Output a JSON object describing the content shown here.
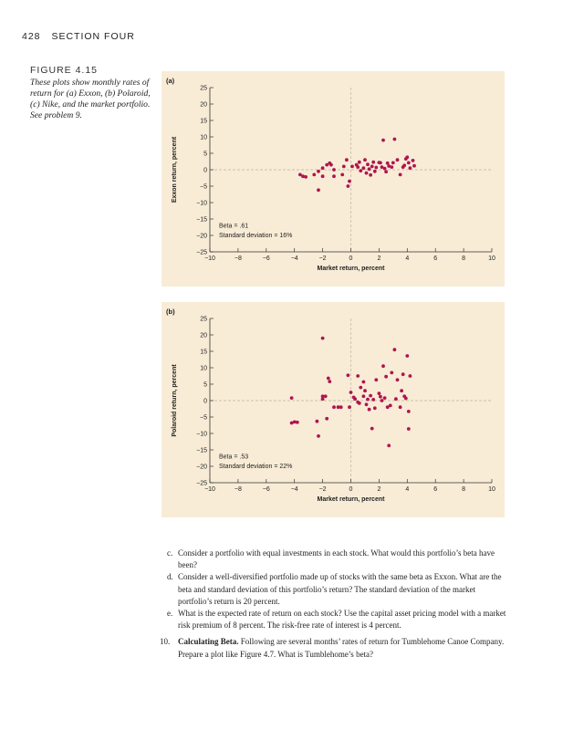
{
  "header": {
    "page_number": "428",
    "section": "SECTION FOUR"
  },
  "figure": {
    "label": "FIGURE 4.15",
    "caption": "These plots show monthly rates of return for (a) Exxon, (b) Polaroid, (c) Nike, and the market portfolio. See problem 9."
  },
  "chart_data": [
    {
      "type": "scatter",
      "panel_label": "(a)",
      "xlabel": "Market return, percent",
      "ylabel": "Exxon return, percent",
      "xlim": [
        -10,
        10
      ],
      "ylim": [
        -25,
        25
      ],
      "xticks": [
        "−10",
        "−8",
        "−6",
        "−4",
        "−2",
        "0",
        "2",
        "4",
        "6",
        "8",
        "10"
      ],
      "yticks": [
        "25",
        "20",
        "15",
        "10",
        "5",
        "0",
        "−5",
        "−10",
        "−15",
        "−20",
        "−25"
      ],
      "annotations": [
        "Beta = .61",
        "Standard deviation = 16%"
      ],
      "grid": false,
      "reference_lines": [
        "x = 0",
        "y = 0"
      ],
      "point_color": "#b0144e",
      "points": [
        [
          -3.6,
          -1.5
        ],
        [
          -3.4,
          -2
        ],
        [
          -3.2,
          -2.2
        ],
        [
          -2.6,
          -1.5
        ],
        [
          -2.3,
          -0.5
        ],
        [
          -2.0,
          -2
        ],
        [
          -2.0,
          0.5
        ],
        [
          -1.7,
          1.5
        ],
        [
          -1.5,
          2
        ],
        [
          -1.4,
          1.5
        ],
        [
          -1.2,
          -2
        ],
        [
          -1.2,
          0
        ],
        [
          -2.3,
          -6.2
        ],
        [
          -0.6,
          -1.5
        ],
        [
          -0.5,
          1
        ],
        [
          -0.3,
          3
        ],
        [
          -0.2,
          -5
        ],
        [
          -0.1,
          -3.5
        ],
        [
          0.1,
          1
        ],
        [
          0.4,
          1.5
        ],
        [
          0.5,
          0.8
        ],
        [
          0.6,
          2.3
        ],
        [
          0.7,
          -0.3
        ],
        [
          0.9,
          0.5
        ],
        [
          1.0,
          3
        ],
        [
          1.1,
          -1
        ],
        [
          1.2,
          1.6
        ],
        [
          1.3,
          0.2
        ],
        [
          1.4,
          -1.6
        ],
        [
          1.5,
          1
        ],
        [
          1.6,
          2.3
        ],
        [
          1.7,
          -0.5
        ],
        [
          1.8,
          0.7
        ],
        [
          2.0,
          2.2
        ],
        [
          2.1,
          2.1
        ],
        [
          2.2,
          0.8
        ],
        [
          2.3,
          9
        ],
        [
          2.4,
          0.4
        ],
        [
          2.5,
          -0.6
        ],
        [
          2.6,
          2
        ],
        [
          2.7,
          1.1
        ],
        [
          2.9,
          0.8
        ],
        [
          3.0,
          2.1
        ],
        [
          3.1,
          9.3
        ],
        [
          3.3,
          3
        ],
        [
          3.5,
          -1.5
        ],
        [
          3.7,
          0.8
        ],
        [
          3.8,
          1.3
        ],
        [
          3.9,
          3.3
        ],
        [
          4.0,
          3.8
        ],
        [
          4.1,
          2.1
        ],
        [
          4.2,
          0.5
        ],
        [
          4.4,
          2.8
        ],
        [
          4.5,
          1.2
        ]
      ]
    },
    {
      "type": "scatter",
      "panel_label": "(b)",
      "xlabel": "Market return, percent",
      "ylabel": "Polaroid return, percent",
      "xlim": [
        -10,
        10
      ],
      "ylim": [
        -25,
        25
      ],
      "xticks": [
        "−10",
        "−8",
        "−6",
        "−4",
        "−2",
        "0",
        "2",
        "4",
        "6",
        "8",
        "10"
      ],
      "yticks": [
        "25",
        "20",
        "15",
        "10",
        "5",
        "0",
        "−5",
        "−10",
        "−15",
        "−20",
        "−25"
      ],
      "annotations": [
        "Beta = .53",
        "Standard deviation = 22%"
      ],
      "grid": false,
      "reference_lines": [
        "x = 0",
        "y = 0"
      ],
      "point_color": "#b0144e",
      "points": [
        [
          -4.2,
          0.8
        ],
        [
          -4.2,
          -6.8
        ],
        [
          -4.0,
          -6.5
        ],
        [
          -3.8,
          -6.6
        ],
        [
          -2.4,
          -6.3
        ],
        [
          -2.0,
          1.3
        ],
        [
          -2.0,
          0.5
        ],
        [
          -1.8,
          1.3
        ],
        [
          -1.7,
          -5.5
        ],
        [
          -1.6,
          6.8
        ],
        [
          -1.5,
          5.8
        ],
        [
          -1.2,
          -2
        ],
        [
          -0.9,
          -2
        ],
        [
          -0.7,
          -2
        ],
        [
          -2.0,
          19
        ],
        [
          -2.3,
          -10.8
        ],
        [
          -0.2,
          7.7
        ],
        [
          0.0,
          2.5
        ],
        [
          0.2,
          1
        ],
        [
          0.3,
          0.5
        ],
        [
          0.5,
          -0.5
        ],
        [
          0.5,
          7.5
        ],
        [
          0.7,
          4
        ],
        [
          0.9,
          5.7
        ],
        [
          0.9,
          1.3
        ],
        [
          1.0,
          3
        ],
        [
          1.1,
          -1.2
        ],
        [
          1.2,
          0.4
        ],
        [
          1.3,
          -2.7
        ],
        [
          1.4,
          1.5
        ],
        [
          1.6,
          0.3
        ],
        [
          1.7,
          -2.3
        ],
        [
          1.8,
          6.3
        ],
        [
          2.0,
          2.2
        ],
        [
          2.1,
          1.2
        ],
        [
          2.2,
          0
        ],
        [
          2.3,
          10.5
        ],
        [
          2.4,
          0.8
        ],
        [
          2.5,
          7.3
        ],
        [
          2.6,
          -2
        ],
        [
          2.8,
          -1.5
        ],
        [
          2.9,
          8.5
        ],
        [
          3.1,
          15.5
        ],
        [
          3.2,
          0.5
        ],
        [
          3.3,
          6.3
        ],
        [
          3.5,
          -2
        ],
        [
          3.6,
          3
        ],
        [
          3.7,
          8
        ],
        [
          3.8,
          1.3
        ],
        [
          3.9,
          0.7
        ],
        [
          4.0,
          13.6
        ],
        [
          4.1,
          -3.3
        ],
        [
          4.2,
          7.5
        ],
        [
          2.7,
          -13.7
        ],
        [
          1.5,
          -8.5
        ],
        [
          -0.1,
          -2
        ],
        [
          0.6,
          -0.8
        ],
        [
          4.1,
          -8.6
        ]
      ]
    }
  ],
  "questions": [
    {
      "label": "c.",
      "text": "Consider a portfolio with equal investments in each stock. What would this portfolio’s beta have been?"
    },
    {
      "label": "d.",
      "text": "Consider a well-diversified portfolio made up of stocks with the same beta as Exxon. What are the beta and standard deviation of this portfolio’s return? The standard deviation of the market portfolio’s return is 20 percent."
    },
    {
      "label": "e.",
      "text": "What is the expected rate of return on each stock? Use the capital asset pricing model with a market risk premium of 8 percent. The risk-free rate of interest is 4 percent."
    }
  ],
  "problem10": {
    "number": "10.",
    "title": "Calculating Beta.",
    "text": "Following are several months’ rates of return for Tumblehome Canoe Company. Prepare a plot like Figure 4.7. What is Tumblehome’s beta?"
  }
}
